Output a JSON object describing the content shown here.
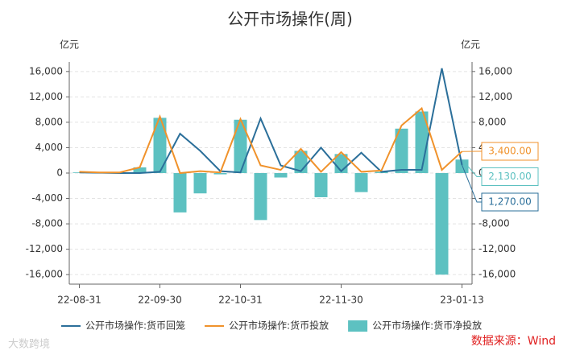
{
  "chart_data": {
    "type": "combo",
    "title": "公开市场操作(周)",
    "y_unit": "亿元",
    "y2_unit": "亿元",
    "categories": [
      "22-08-31",
      null,
      null,
      null,
      "22-09-30",
      null,
      null,
      null,
      "22-10-31",
      null,
      null,
      null,
      null,
      "22-11-30",
      null,
      null,
      null,
      null,
      null,
      "23-01-13"
    ],
    "series": [
      {
        "name": "公开市场操作:货币回笼",
        "type": "line",
        "color": "#2b6f9a",
        "values": [
          100,
          50,
          0,
          0,
          200,
          6200,
          3500,
          300,
          100,
          8600,
          1200,
          300,
          4000,
          300,
          3200,
          200,
          500,
          500,
          16500,
          1270
        ],
        "value_labels": [
          null,
          null,
          null,
          null,
          null,
          null,
          null,
          null,
          null,
          null,
          null,
          null,
          null,
          null,
          null,
          null,
          null,
          null,
          null,
          "1,270.00"
        ]
      },
      {
        "name": "公开市场操作:货币投放",
        "type": "line",
        "color": "#f0922b",
        "values": [
          200,
          100,
          100,
          900,
          8900,
          0,
          300,
          100,
          8500,
          1200,
          500,
          3800,
          200,
          3300,
          200,
          400,
          7500,
          10200,
          500,
          3400
        ],
        "value_labels": [
          null,
          null,
          null,
          null,
          null,
          null,
          null,
          null,
          null,
          null,
          null,
          null,
          null,
          null,
          null,
          null,
          null,
          null,
          null,
          "3,400.00"
        ]
      },
      {
        "name": "公开市场操作:货币净投放",
        "type": "bar",
        "color": "#5dc1c1",
        "values": [
          100,
          50,
          100,
          900,
          8700,
          -6200,
          -3200,
          -200,
          8400,
          -7400,
          -700,
          3500,
          -3800,
          3000,
          -3000,
          200,
          7000,
          9700,
          -16000,
          2130
        ],
        "value_labels": [
          null,
          null,
          null,
          null,
          null,
          null,
          null,
          null,
          null,
          null,
          null,
          null,
          null,
          null,
          null,
          null,
          null,
          null,
          null,
          "2,130.00"
        ]
      }
    ],
    "ylim": [
      -17500,
      17500
    ],
    "yticks": [
      {
        "value": -16000,
        "label": "-16,000"
      },
      {
        "value": -12000,
        "label": "-12,000"
      },
      {
        "value": -8000,
        "label": "-8,000"
      },
      {
        "value": -4000,
        "label": "-4,000"
      },
      0,
      {
        "value": 4000,
        "label": "4,000"
      },
      {
        "value": 8000,
        "label": "8,000"
      },
      {
        "value": 12000,
        "label": "12,000"
      },
      {
        "value": 16000,
        "label": "16,000"
      }
    ],
    "y2lim": [
      -17500,
      17500
    ],
    "y2ticks": [
      {
        "value": -16000,
        "label": "-16,000"
      },
      {
        "value": -12000,
        "label": "-12,000"
      },
      {
        "value": -8000,
        "label": "-8,000"
      },
      {
        "value": -4000,
        "label": "-4,000"
      },
      0,
      {
        "value": 4000,
        "label": "4,000"
      },
      {
        "value": 8000,
        "label": "8,000"
      },
      {
        "value": 12000,
        "label": "12,000"
      },
      {
        "value": 16000,
        "label": "16,000"
      }
    ],
    "grid": true,
    "legend": "bottom",
    "source": "数据来源：Wind",
    "watermark": "大数跨境"
  }
}
